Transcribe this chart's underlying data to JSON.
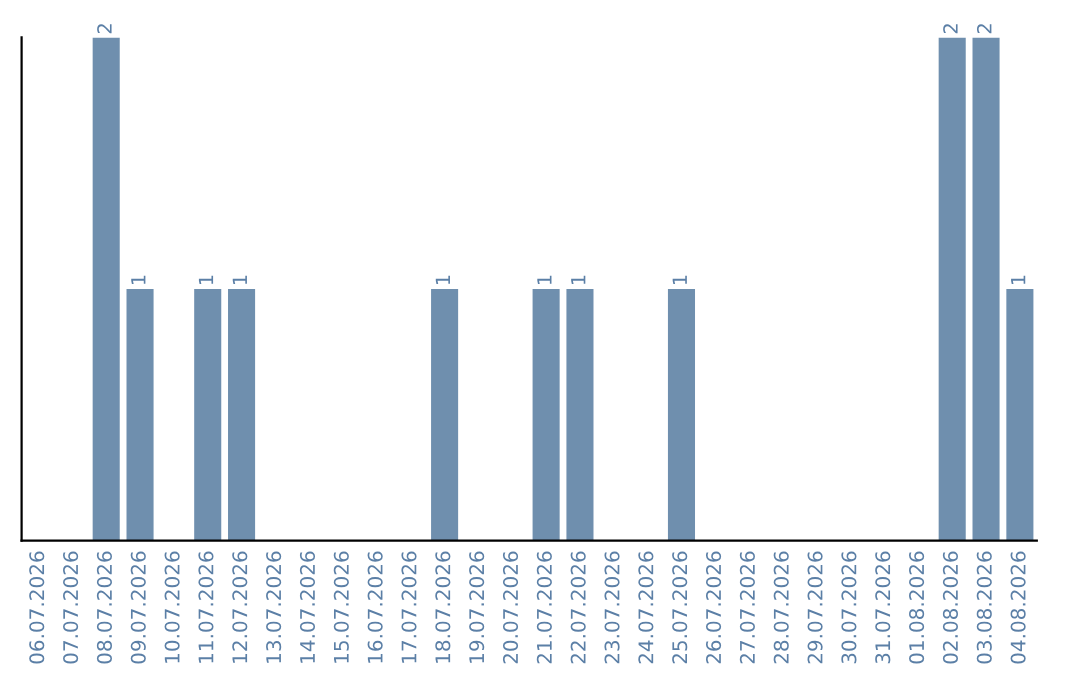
{
  "chart_data": {
    "type": "bar",
    "categories": [
      "06.07.2026",
      "07.07.2026",
      "08.07.2026",
      "09.07.2026",
      "10.07.2026",
      "11.07.2026",
      "12.07.2026",
      "13.07.2026",
      "14.07.2026",
      "15.07.2026",
      "16.07.2026",
      "17.07.2026",
      "18.07.2026",
      "19.07.2026",
      "20.07.2026",
      "21.07.2026",
      "22.07.2026",
      "23.07.2026",
      "24.07.2026",
      "25.07.2026",
      "26.07.2026",
      "27.07.2026",
      "28.07.2026",
      "29.07.2026",
      "30.07.2026",
      "31.07.2026",
      "01.08.2026",
      "02.08.2026",
      "03.08.2026",
      "04.08.2026"
    ],
    "values": [
      0,
      0,
      2,
      1,
      0,
      1,
      1,
      0,
      0,
      0,
      0,
      0,
      1,
      0,
      0,
      1,
      1,
      0,
      0,
      1,
      0,
      0,
      0,
      0,
      0,
      0,
      0,
      2,
      2,
      1
    ],
    "value_labels": [
      null,
      null,
      "2",
      "1",
      null,
      "1",
      "1",
      null,
      null,
      null,
      null,
      null,
      "1",
      null,
      null,
      "1",
      "1",
      null,
      null,
      "1",
      null,
      null,
      null,
      null,
      null,
      null,
      null,
      "2",
      "2",
      "1"
    ],
    "color": "#6f8fae",
    "ylim": [
      0,
      2
    ],
    "tick_labels": "x",
    "grid": false,
    "legend": false
  }
}
